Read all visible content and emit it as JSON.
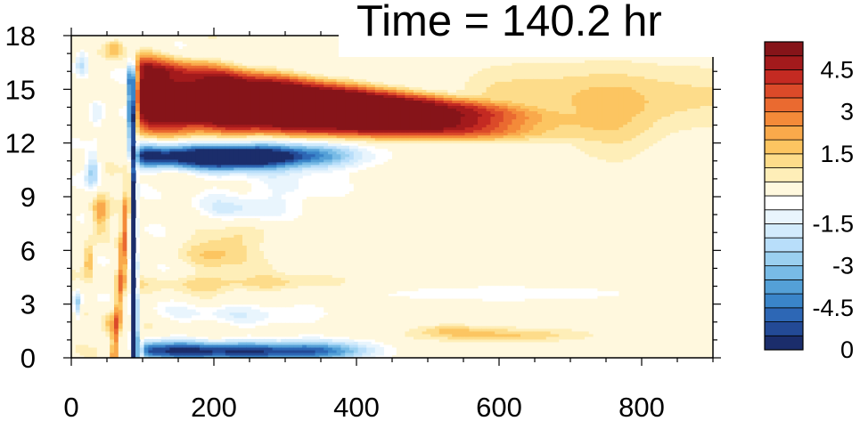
{
  "chart_data": {
    "type": "heatmap",
    "title": "Time = 140.2 hr",
    "xlim": [
      0,
      900
    ],
    "ylim": [
      0,
      18
    ],
    "x_ticks": [
      0,
      200,
      400,
      600,
      800
    ],
    "x_tick_labels": [
      "0",
      "200",
      "400",
      "600",
      "800"
    ],
    "y_ticks": [
      0,
      3,
      6,
      9,
      12,
      15,
      18
    ],
    "y_tick_labels": [
      "0",
      "3",
      "6",
      "9",
      "12",
      "15",
      "18"
    ],
    "colorbar": {
      "levels": [
        -5.5,
        -5,
        -4.5,
        -4,
        -3.5,
        -3,
        -2.5,
        -2,
        -1.5,
        -1,
        -0.5,
        0.5,
        1,
        1.5,
        2,
        2.5,
        3,
        3.5,
        4,
        4.5,
        5,
        5.5
      ],
      "colors": [
        "#1b2d6b",
        "#234a96",
        "#2d67b5",
        "#3a85c9",
        "#54a0d7",
        "#78bbe6",
        "#9bd0f0",
        "#b8defa",
        "#d2ebfc",
        "#e9f5fd",
        "#ffffff",
        "#fff8de",
        "#feeeb8",
        "#fddc8a",
        "#fcc561",
        "#f9a94b",
        "#f48a39",
        "#ea6a30",
        "#db4a29",
        "#c42a22",
        "#a31a1c",
        "#861419"
      ],
      "labeled_ticks": [
        -4.5,
        -3,
        -1.5,
        0,
        1.5,
        3,
        4.5
      ],
      "tick_labels": [
        "-4.5",
        "-3",
        "-1.5",
        "0",
        "1.5",
        "3",
        "4.5"
      ]
    },
    "features": [
      {
        "name": "upper positive jet",
        "x": [
          95,
          600
        ],
        "y": [
          12.5,
          17.0
        ],
        "peak": 5.5
      },
      {
        "name": "negative band below jet",
        "x": [
          95,
          400
        ],
        "y": [
          10.5,
          12.3
        ],
        "peak": -5.0
      },
      {
        "name": "near-surface negative band",
        "x": [
          100,
          420
        ],
        "y": [
          0,
          1.2
        ],
        "peak": -5.0
      },
      {
        "name": "vertical negative streak",
        "x": [
          80,
          100
        ],
        "y": [
          0,
          17
        ],
        "peak": -5.5
      },
      {
        "name": "faint positive near surface",
        "x": [
          500,
          800
        ],
        "y": [
          0.5,
          2.0
        ],
        "peak": 2.0
      }
    ]
  }
}
